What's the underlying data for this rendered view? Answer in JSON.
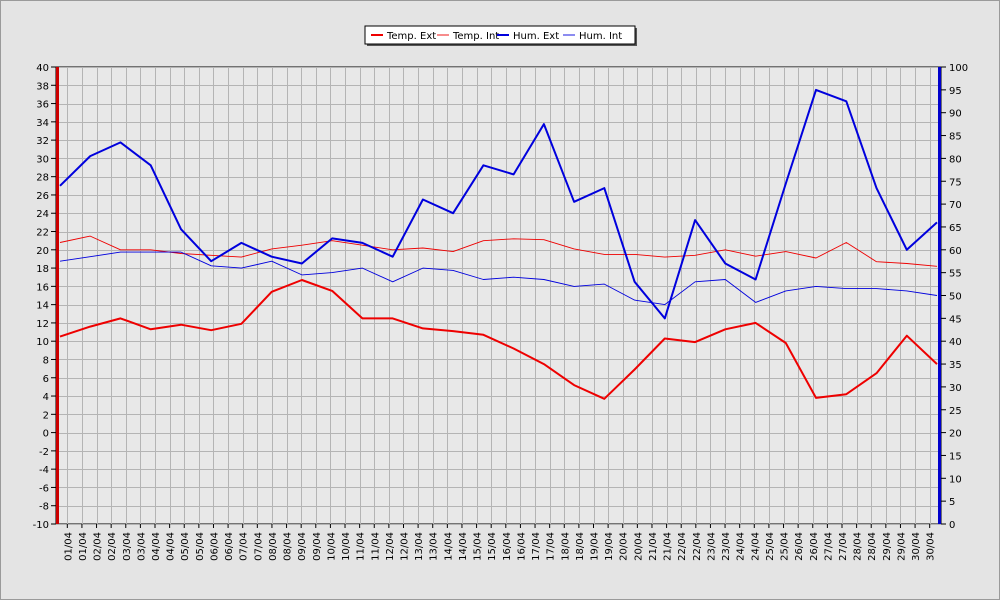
{
  "chart_data": {
    "type": "line",
    "x": [
      "01/04",
      "02/04",
      "03/04",
      "04/04",
      "05/04",
      "06/04",
      "07/04",
      "08/04",
      "09/04",
      "10/04",
      "11/04",
      "12/04",
      "13/04",
      "14/04",
      "15/04",
      "16/04",
      "17/04",
      "18/04",
      "19/04",
      "20/04",
      "21/04",
      "22/04",
      "23/04",
      "24/04",
      "25/04",
      "26/04",
      "27/04",
      "28/04",
      "29/04",
      "30/04"
    ],
    "tick_labels": [
      "01/04",
      "01/04",
      "02/04",
      "02/04",
      "03/04",
      "03/04",
      "04/04",
      "04/04",
      "05/04",
      "05/04",
      "06/04",
      "06/04",
      "07/04",
      "07/04",
      "08/04",
      "08/04",
      "09/04",
      "09/04",
      "10/04",
      "10/04",
      "11/04",
      "11/04",
      "12/04",
      "12/04",
      "13/04",
      "13/04",
      "14/04",
      "14/04",
      "15/04",
      "15/04",
      "16/04",
      "16/04",
      "17/04",
      "17/04",
      "18/04",
      "18/04",
      "19/04",
      "19/04",
      "20/04",
      "20/04",
      "21/04",
      "21/04",
      "22/04",
      "22/04",
      "23/04",
      "23/04",
      "24/04",
      "24/04",
      "25/04",
      "25/04",
      "26/04",
      "26/04",
      "27/04",
      "27/04",
      "28/04",
      "28/04",
      "29/04",
      "29/04",
      "30/04",
      "30/04"
    ],
    "y_left": {
      "range": [
        -10,
        40
      ],
      "step": 2
    },
    "y_right": {
      "range": [
        0,
        100
      ],
      "step": 5
    },
    "grid": true,
    "legend_position": "top-center",
    "series": [
      {
        "name": "Temp. Ext",
        "axis": "left",
        "color": "#ee0000",
        "width": 2,
        "values": [
          10.5,
          11.6,
          12.5,
          11.3,
          11.8,
          11.2,
          11.9,
          15.4,
          16.7,
          15.5,
          12.5,
          12.5,
          11.4,
          11.1,
          10.7,
          9.2,
          7.5,
          5.2,
          3.7,
          6.9,
          10.3,
          9.9,
          11.3,
          12.0,
          9.8,
          3.8,
          4.2,
          6.5,
          10.6,
          7.5
        ]
      },
      {
        "name": "Temp. Int",
        "axis": "left",
        "color": "#ee0000",
        "width": 0.9,
        "values": [
          20.8,
          21.5,
          20.0,
          20.0,
          19.6,
          19.4,
          19.2,
          20.1,
          20.5,
          21.0,
          20.5,
          20.0,
          20.2,
          19.8,
          21.0,
          21.2,
          21.1,
          20.1,
          19.5,
          19.5,
          19.2,
          19.4,
          20.0,
          19.3,
          19.8,
          19.1,
          20.8,
          18.7,
          18.5,
          18.2
        ]
      },
      {
        "name": "Hum. Ext",
        "axis": "right",
        "color": "#0000dd",
        "width": 2,
        "values": [
          74,
          80.5,
          83.5,
          78.5,
          64.5,
          57.5,
          61.5,
          58.5,
          57,
          62.5,
          61.5,
          58.5,
          71,
          68,
          78.5,
          76.5,
          87.5,
          70.5,
          73.5,
          53,
          45,
          66.5,
          57,
          53.5,
          74.5,
          95,
          92.5,
          73.5,
          60,
          66
        ]
      },
      {
        "name": "Hum. Int",
        "axis": "right",
        "color": "#0000dd",
        "width": 0.9,
        "values": [
          57.5,
          58.5,
          59.5,
          59.5,
          59.5,
          56.5,
          56,
          57.5,
          54.5,
          55,
          56,
          53,
          56,
          55.5,
          53.5,
          54,
          53.5,
          52,
          52.5,
          49,
          48,
          53,
          53.5,
          48.5,
          51,
          52,
          51.5,
          51.5,
          51,
          50
        ]
      }
    ]
  }
}
